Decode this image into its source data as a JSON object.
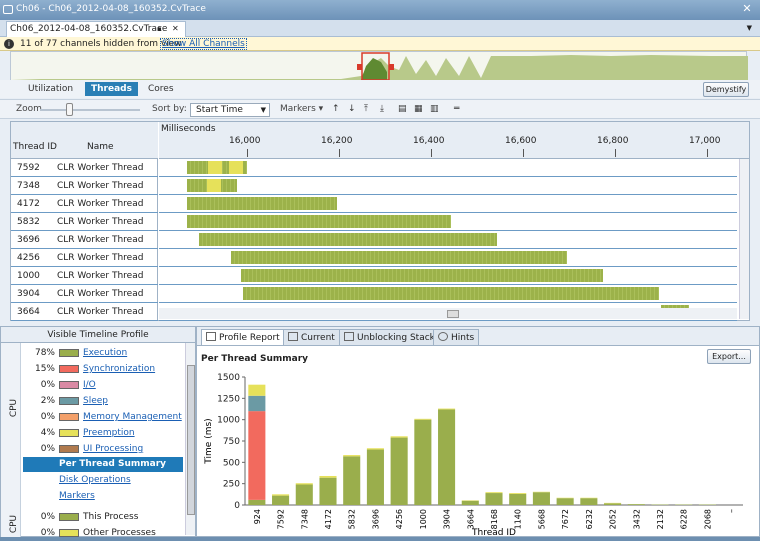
{
  "window": {
    "title": "Ch06 - Ch06_2012-04-08_160352.CvTrace",
    "close_glyph": "✕"
  },
  "doc_tab": {
    "label": "Ch06_2012-04-08_160352.CvTrace",
    "pin_glyph": "▪",
    "close_glyph": "✕",
    "dropdown_glyph": "▼"
  },
  "info": {
    "icon_glyph": "i",
    "message": "11 of 77 channels hidden from view",
    "link": "Show All Channels"
  },
  "view_tabs": [
    "Utilization",
    "Threads",
    "Cores"
  ],
  "active_view_tab": "Threads",
  "demystify_label": "Demystify",
  "toolbar": {
    "zoom_label": "Zoom",
    "sort_label": "Sort by:",
    "sort_value": "Start Time",
    "markers_label": "Markers ▾",
    "icons": [
      "arrow-up-icon",
      "arrow-down-icon",
      "move-top-icon",
      "move-bottom-icon",
      "group-icon-1",
      "group-icon-2",
      "group-icon-3",
      "collapse-icon"
    ],
    "icon_glyphs": [
      "↑",
      "↓",
      "⤒",
      "⤓",
      "▤",
      "▦",
      "▥",
      "═"
    ]
  },
  "grid": {
    "columns": [
      "Thread ID",
      "Name"
    ],
    "axis_label": "Milliseconds",
    "ticks": [
      "16,000",
      "16,200",
      "16,400",
      "16,600",
      "16,800",
      "17,000"
    ],
    "rows": [
      {
        "id": "7592",
        "name": "CLR Worker Thread"
      },
      {
        "id": "7348",
        "name": "CLR Worker Thread"
      },
      {
        "id": "4172",
        "name": "CLR Worker Thread"
      },
      {
        "id": "5832",
        "name": "CLR Worker Thread"
      },
      {
        "id": "3696",
        "name": "CLR Worker Thread"
      },
      {
        "id": "4256",
        "name": "CLR Worker Thread"
      },
      {
        "id": "1000",
        "name": "CLR Worker Thread"
      },
      {
        "id": "3904",
        "name": "CLR Worker Thread"
      },
      {
        "id": "3664",
        "name": "CLR Worker Thread"
      }
    ]
  },
  "profile": {
    "title": "Visible Timeline Profile",
    "cpu_label": "CPU",
    "categories": [
      {
        "pct": "78%",
        "name": "Execution",
        "color": "#9aae4c"
      },
      {
        "pct": "15%",
        "name": "Synchronization",
        "color": "#f26a5e"
      },
      {
        "pct": "0%",
        "name": "I/O",
        "color": "#d98aa4"
      },
      {
        "pct": "2%",
        "name": "Sleep",
        "color": "#6b9aa4"
      },
      {
        "pct": "0%",
        "name": "Memory Management",
        "color": "#f3a06a"
      },
      {
        "pct": "4%",
        "name": "Preemption",
        "color": "#e6e15a"
      },
      {
        "pct": "0%",
        "name": "UI Processing",
        "color": "#b07a4e"
      }
    ],
    "nav": [
      "Per Thread Summary",
      "Disk Operations",
      "Markers"
    ],
    "active_nav": "Per Thread Summary",
    "bottom": [
      {
        "pct": "0%",
        "name": "This Process",
        "color": "#9aae4c"
      },
      {
        "pct": "0%",
        "name": "Other Processes",
        "color": "#e6e15a"
      }
    ]
  },
  "report_tabs": [
    "Profile Report",
    "Current",
    "Unblocking Stack",
    "Hints"
  ],
  "active_report_tab": "Profile Report",
  "report": {
    "title": "Per Thread Summary",
    "export_label": "Export..."
  },
  "chart_data": {
    "type": "bar",
    "xlabel": "Thread ID",
    "ylabel": "Time (ms)",
    "ylim": [
      0,
      1500
    ],
    "yticks": [
      0,
      250,
      500,
      750,
      1000,
      1250,
      1500
    ],
    "categories": [
      "924",
      "7592",
      "7348",
      "4172",
      "5832",
      "3696",
      "4256",
      "1000",
      "3904",
      "3664",
      "8168",
      "1140",
      "5668",
      "7672",
      "6232",
      "2052",
      "3432",
      "2132",
      "6228",
      "2068",
      "–"
    ],
    "series": [
      {
        "name": "Execution",
        "color": "#9aae4c",
        "values": [
          60,
          110,
          240,
          320,
          570,
          650,
          790,
          1000,
          1120,
          50,
          140,
          130,
          150,
          80,
          80,
          20,
          10,
          5,
          5,
          5,
          0
        ]
      },
      {
        "name": "Synchronization",
        "color": "#f26a5e",
        "values": [
          1040,
          0,
          0,
          0,
          0,
          0,
          0,
          0,
          0,
          0,
          0,
          0,
          0,
          0,
          0,
          0,
          0,
          0,
          0,
          0,
          0
        ]
      },
      {
        "name": "Sleep",
        "color": "#6b9aa4",
        "values": [
          180,
          0,
          0,
          0,
          0,
          0,
          0,
          0,
          0,
          0,
          0,
          0,
          0,
          0,
          0,
          0,
          0,
          0,
          0,
          0,
          0
        ]
      },
      {
        "name": "Preemption",
        "color": "#e6e15a",
        "values": [
          130,
          15,
          15,
          20,
          15,
          15,
          15,
          10,
          10,
          5,
          10,
          10,
          5,
          5,
          5,
          5,
          0,
          0,
          0,
          0,
          0
        ]
      }
    ],
    "grid": false,
    "legend": "none"
  }
}
